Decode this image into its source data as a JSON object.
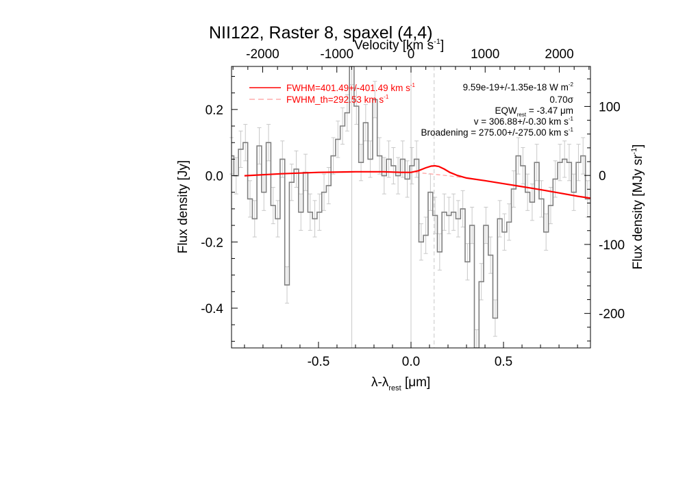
{
  "chart_data": {
    "type": "line",
    "title": "NII122, Raster 8, spaxel (4,4)",
    "xlabel_main": "λ-λ",
    "xlabel_sub": "rest",
    "xlabel_unit": " [μm]",
    "ylabel": "Flux density [Jy]",
    "y2label_main": "Flux density [MJy sr",
    "y2label_sup": "-1",
    "y2label_end": "]",
    "top_label_main": "Velocity [km s",
    "top_label_sup": "-1",
    "top_label_end": "]",
    "xlim": [
      -0.97,
      0.97
    ],
    "ylim": [
      -0.52,
      0.33
    ],
    "y2lim": [
      -250,
      158
    ],
    "x_ticks": [
      {
        "v": -0.5,
        "t": "-0.5"
      },
      {
        "v": 0.0,
        "t": "0.0"
      },
      {
        "v": 0.5,
        "t": "0.5"
      }
    ],
    "y_ticks": [
      {
        "v": 0.2,
        "t": "0.2"
      },
      {
        "v": 0.0,
        "t": "0.0"
      },
      {
        "v": -0.2,
        "t": "-0.2"
      },
      {
        "v": -0.4,
        "t": "-0.4"
      }
    ],
    "y2_ticks": [
      {
        "v": 100,
        "t": "100"
      },
      {
        "v": 0,
        "t": "0"
      },
      {
        "v": -100,
        "t": "-100"
      },
      {
        "v": -200,
        "t": "-200"
      }
    ],
    "top_ticks": [
      {
        "v": -2000,
        "t": "-2000"
      },
      {
        "v": -1000,
        "t": "-1000"
      },
      {
        "v": 0,
        "t": "0"
      },
      {
        "v": 1000,
        "t": "1000"
      },
      {
        "v": 2000,
        "t": "2000"
      }
    ],
    "velocity_range": [
      -2420,
      2420
    ],
    "vlines_solid": [
      -0.32,
      0.0
    ],
    "vline_dashed": 0.125,
    "spectrum": {
      "x": [
        -0.97,
        -0.945,
        -0.92,
        -0.895,
        -0.87,
        -0.845,
        -0.82,
        -0.795,
        -0.77,
        -0.745,
        -0.72,
        -0.695,
        -0.67,
        -0.645,
        -0.62,
        -0.595,
        -0.57,
        -0.545,
        -0.52,
        -0.495,
        -0.47,
        -0.445,
        -0.42,
        -0.395,
        -0.37,
        -0.345,
        -0.32,
        -0.295,
        -0.27,
        -0.245,
        -0.22,
        -0.195,
        -0.17,
        -0.145,
        -0.12,
        -0.095,
        -0.07,
        -0.045,
        -0.02,
        0.005,
        0.03,
        0.055,
        0.08,
        0.105,
        0.13,
        0.155,
        0.18,
        0.205,
        0.23,
        0.255,
        0.28,
        0.305,
        0.33,
        0.355,
        0.38,
        0.405,
        0.43,
        0.455,
        0.48,
        0.505,
        0.53,
        0.555,
        0.58,
        0.605,
        0.63,
        0.655,
        0.68,
        0.705,
        0.73,
        0.755,
        0.78,
        0.805,
        0.83,
        0.855,
        0.88,
        0.905,
        0.93,
        0.955
      ],
      "y": [
        0.06,
        0.0,
        0.08,
        0.1,
        -0.07,
        -0.13,
        0.09,
        -0.05,
        0.1,
        -0.09,
        -0.13,
        0.05,
        -0.33,
        -0.02,
        0.02,
        -0.11,
        0.01,
        -0.11,
        -0.13,
        -0.11,
        -0.05,
        -0.03,
        0.06,
        0.11,
        0.15,
        0.19,
        0.33,
        0.21,
        0.04,
        0.16,
        0.05,
        0.23,
        0.06,
        0.0,
        0.05,
        0.03,
        0.0,
        0.05,
        -0.01,
        0.03,
        0.05,
        -0.2,
        -0.18,
        -0.05,
        -0.12,
        -0.23,
        -0.11,
        -0.12,
        -0.11,
        -0.13,
        -0.1,
        -0.26,
        -0.15,
        -0.52,
        -0.32,
        -0.15,
        -0.24,
        -0.43,
        -0.13,
        -0.17,
        -0.14,
        -0.04,
        0.06,
        0.03,
        -0.05,
        -0.08,
        0.04,
        -0.07,
        -0.17,
        -0.09,
        -0.01,
        0.04,
        0.05,
        0.04,
        -0.05,
        0.04,
        0.06,
        -0.07
      ],
      "err": 0.055
    },
    "fit_line": {
      "x": [
        -0.9,
        -0.7,
        -0.5,
        -0.3,
        -0.15,
        -0.05,
        0.0,
        0.04,
        0.08,
        0.11,
        0.13,
        0.15,
        0.18,
        0.21,
        0.25,
        0.3,
        0.4,
        0.5,
        0.6,
        0.7,
        0.8,
        0.9,
        0.97
      ],
      "y": [
        0.0,
        0.006,
        0.01,
        0.012,
        0.012,
        0.01,
        0.01,
        0.015,
        0.024,
        0.029,
        0.03,
        0.028,
        0.02,
        0.01,
        0.001,
        -0.007,
        -0.015,
        -0.024,
        -0.033,
        -0.042,
        -0.052,
        -0.062,
        -0.068
      ]
    },
    "continuum_line": {
      "x": [
        -0.9,
        -0.7,
        -0.5,
        -0.3,
        -0.1,
        0.0,
        0.1,
        0.2,
        0.3,
        0.4,
        0.5,
        0.6,
        0.7,
        0.8,
        0.9,
        0.97
      ],
      "y": [
        0.0,
        0.006,
        0.01,
        0.012,
        0.012,
        0.011,
        0.006,
        0.0,
        -0.007,
        -0.015,
        -0.024,
        -0.033,
        -0.042,
        -0.052,
        -0.062,
        -0.068
      ]
    },
    "legend": [
      {
        "name": "FWHM=401.49+/-401.49 km s",
        "sup": "-1",
        "style": "solid"
      },
      {
        "name": "FWHM_th=292.53 km s",
        "sup": "-1",
        "style": "dashed"
      }
    ],
    "annotations": {
      "flux_main": "9.59e-19+/-1.35e-18 W m",
      "flux_sup": "-2",
      "sigma": "0.70σ",
      "eqw_main": "EQW",
      "eqw_sub": "rest",
      "eqw_end": " = -3.47 μm",
      "v_main": "v = 306.88+/-0.30 km s",
      "v_sup": "-1",
      "broad_main": "Broadening = 275.00+/-275.00 km s",
      "broad_sup": "-1"
    },
    "colors": {
      "data": "#7f7f7f",
      "error": "#c8c8c8",
      "fit": "#ff0000",
      "continuum": "#ff9a9a",
      "vline": "#c8c8c8",
      "frame": "#000000"
    }
  }
}
